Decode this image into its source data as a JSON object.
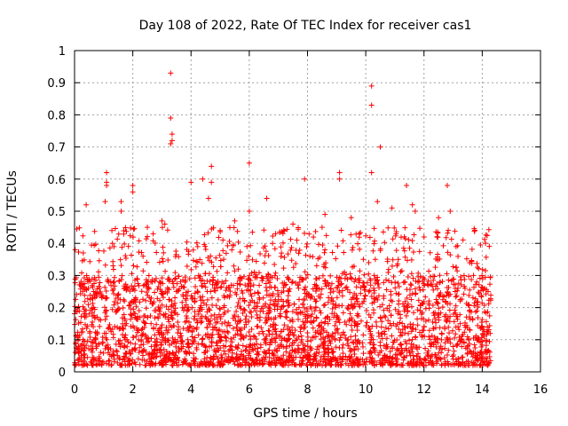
{
  "chart_data": {
    "type": "scatter",
    "title": "Day 108 of 2022, Rate Of TEC Index for receiver cas1",
    "xlabel": "GPS time / hours",
    "ylabel": "ROTI / TECUs",
    "xlim": [
      0,
      16
    ],
    "ylim": [
      0,
      1
    ],
    "xticks": [
      "0",
      "2",
      "4",
      "6",
      "8",
      "10",
      "12",
      "14",
      "16"
    ],
    "yticks": [
      "0",
      "0.1",
      "0.2",
      "0.3",
      "0.4",
      "0.5",
      "0.6",
      "0.7",
      "0.8",
      "0.9",
      "1"
    ],
    "grid": true,
    "marker": "plus",
    "color": "#ff0000",
    "data_x_range": [
      0,
      14.3
    ],
    "points": [
      [
        0.4,
        0.52
      ],
      [
        0.3,
        0.37
      ],
      [
        1.1,
        0.62
      ],
      [
        1.1,
        0.59
      ],
      [
        1.1,
        0.58
      ],
      [
        1.05,
        0.53
      ],
      [
        1.3,
        0.4
      ],
      [
        1.6,
        0.53
      ],
      [
        1.6,
        0.5
      ],
      [
        2.0,
        0.58
      ],
      [
        2.0,
        0.56
      ],
      [
        2.5,
        0.45
      ],
      [
        2.7,
        0.43
      ],
      [
        3.0,
        0.47
      ],
      [
        3.1,
        0.46
      ],
      [
        3.3,
        0.93
      ],
      [
        3.3,
        0.79
      ],
      [
        3.35,
        0.74
      ],
      [
        3.35,
        0.72
      ],
      [
        3.3,
        0.71
      ],
      [
        4.0,
        0.59
      ],
      [
        4.4,
        0.6
      ],
      [
        4.7,
        0.64
      ],
      [
        4.7,
        0.59
      ],
      [
        4.6,
        0.54
      ],
      [
        5.0,
        0.44
      ],
      [
        5.5,
        0.47
      ],
      [
        6.0,
        0.65
      ],
      [
        6.0,
        0.5
      ],
      [
        6.6,
        0.54
      ],
      [
        6.8,
        0.4
      ],
      [
        7.5,
        0.46
      ],
      [
        7.9,
        0.6
      ],
      [
        8.6,
        0.49
      ],
      [
        8.5,
        0.45
      ],
      [
        9.1,
        0.62
      ],
      [
        9.1,
        0.6
      ],
      [
        9.5,
        0.48
      ],
      [
        10.2,
        0.89
      ],
      [
        10.2,
        0.83
      ],
      [
        10.2,
        0.62
      ],
      [
        10.5,
        0.7
      ],
      [
        10.4,
        0.53
      ],
      [
        10.9,
        0.51
      ],
      [
        11.4,
        0.58
      ],
      [
        11.6,
        0.52
      ],
      [
        11.7,
        0.5
      ],
      [
        12.0,
        0.42
      ],
      [
        12.5,
        0.48
      ],
      [
        12.8,
        0.58
      ],
      [
        12.9,
        0.5
      ],
      [
        13.1,
        0.39
      ],
      [
        13.7,
        0.3
      ],
      [
        14.2,
        0.25
      ]
    ],
    "band_summary": "dense cloud of points between 0.02 and 0.30 ROTI from 0 to 14.3 hours"
  }
}
